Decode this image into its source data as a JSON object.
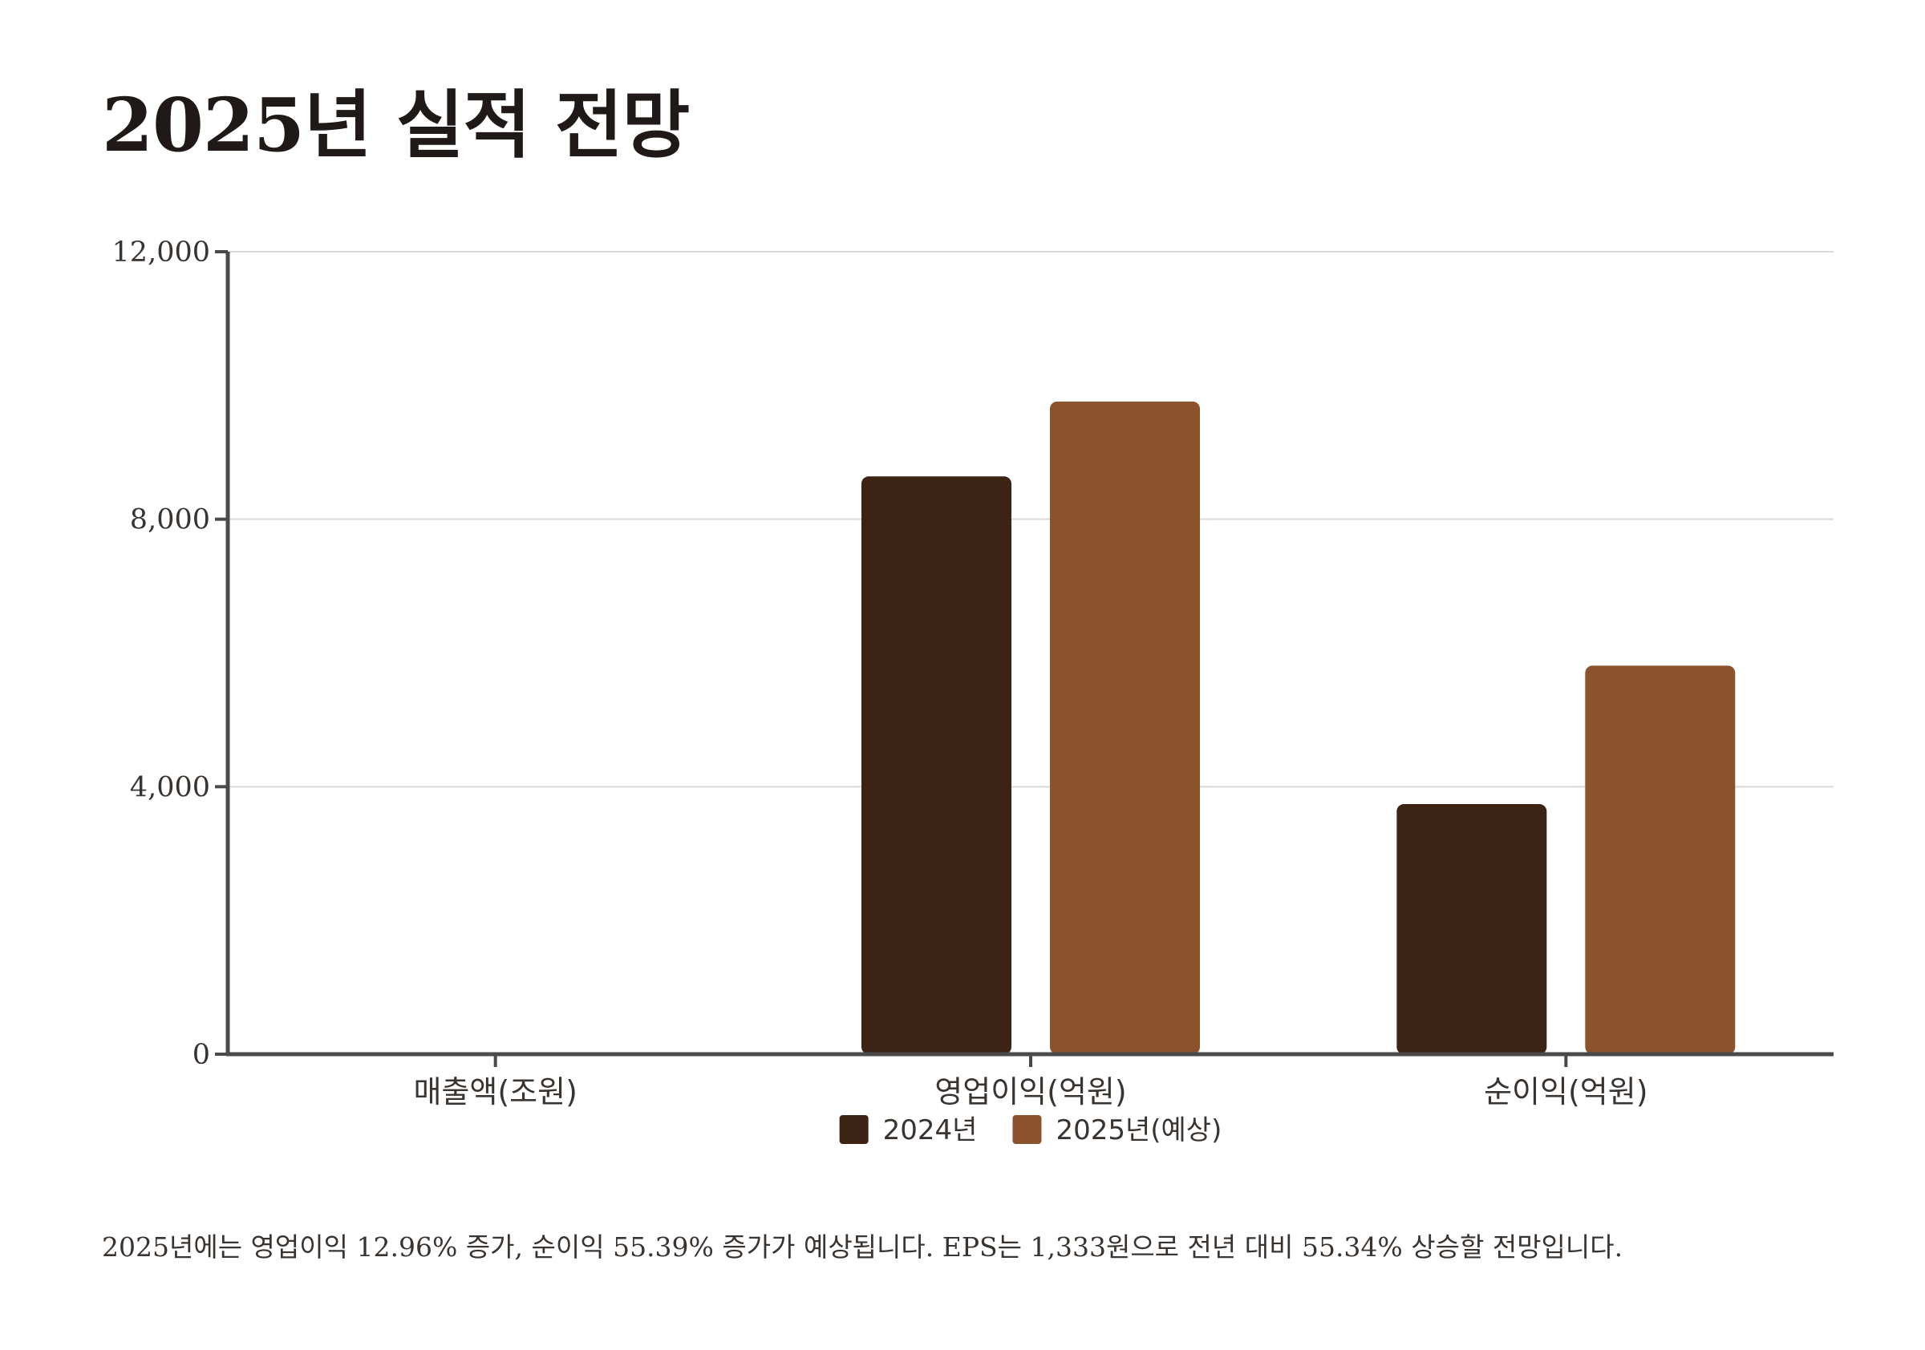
{
  "page": {
    "title": "2025년 실적 전망",
    "footnote": "2025년에는 영업이익 12.96% 증가, 순이익 55.39% 증가가 예상됩니다. EPS는 1,333원으로 전년 대비 55.34% 상승할 전망입니다."
  },
  "chart_data": {
    "type": "bar",
    "title": "2025년 실적 전망",
    "xlabel": "",
    "ylabel": "",
    "categories": [
      "매출액(조원)",
      "영업이익(억원)",
      "순이익(억원)"
    ],
    "series": [
      {
        "name": "2024년",
        "color": "#3d2314",
        "values": [
          0,
          8640,
          3740
        ]
      },
      {
        "name": "2025년(예상)",
        "color": "#8b532b",
        "values": [
          0,
          9760,
          5810
        ]
      }
    ],
    "ylim": [
      0,
      12000
    ],
    "yticks": [
      0,
      4000,
      8000,
      12000
    ],
    "ytick_labels": [
      "0",
      "4,000",
      "8,000",
      "12,000"
    ],
    "grid": true,
    "legend_position": "bottom-center",
    "colors": {
      "grid": "#d9d9d9",
      "axis": "#4a4a4a"
    }
  }
}
